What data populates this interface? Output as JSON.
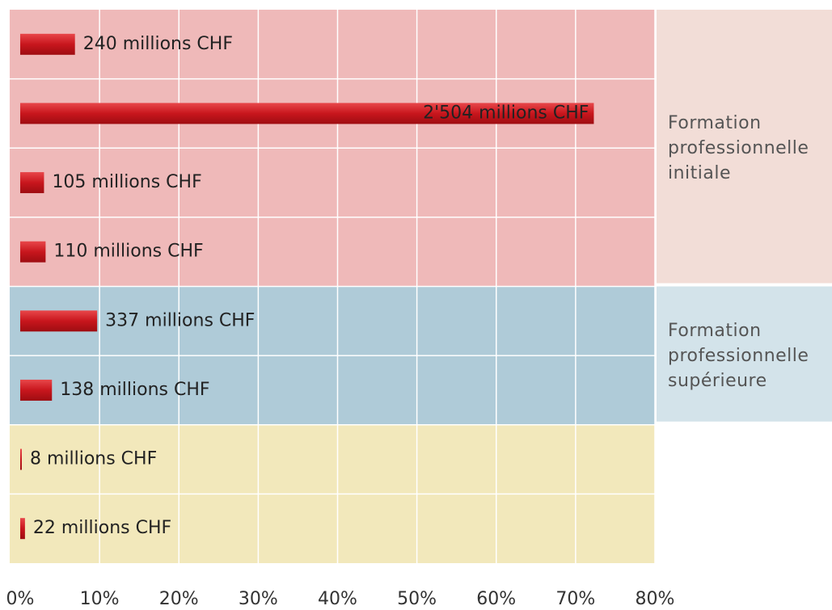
{
  "chart_data": {
    "type": "bar",
    "orientation": "horizontal",
    "series": [
      {
        "color": "#c8161d",
        "values": [
          6.9,
          72.3,
          3.0,
          3.2,
          9.7,
          4.0,
          0.2,
          0.6
        ]
      }
    ],
    "bar_labels": [
      "240 millions CHF",
      "2'504 millions CHF",
      "105 millions CHF",
      "110 millions CHF",
      "337 millions CHF",
      "138 millions CHF",
      "8 millions CHF",
      "22 millions CHF"
    ],
    "groups": [
      {
        "name": "Formation professionnelle initiale",
        "count": 4,
        "color": "#efb9b9",
        "panel_color": "#f2ddd7"
      },
      {
        "name": "Formation professionnelle supérieure",
        "count": 2,
        "color": "#afcbd8",
        "panel_color": "#d3e3ea"
      },
      {
        "count": 2,
        "color": "#f2e8bb"
      }
    ],
    "xlim": [
      0,
      80
    ],
    "xticks": [
      {
        "value": 0,
        "label": "0%"
      },
      {
        "value": 10,
        "label": "10%"
      },
      {
        "value": 20,
        "label": "20%"
      },
      {
        "value": 30,
        "label": "30%"
      },
      {
        "value": 40,
        "label": "40%"
      },
      {
        "value": 50,
        "label": "50%"
      },
      {
        "value": 60,
        "label": "60%"
      },
      {
        "value": 70,
        "label": "70%"
      },
      {
        "value": 80,
        "label": "80%"
      }
    ],
    "grid": true
  }
}
